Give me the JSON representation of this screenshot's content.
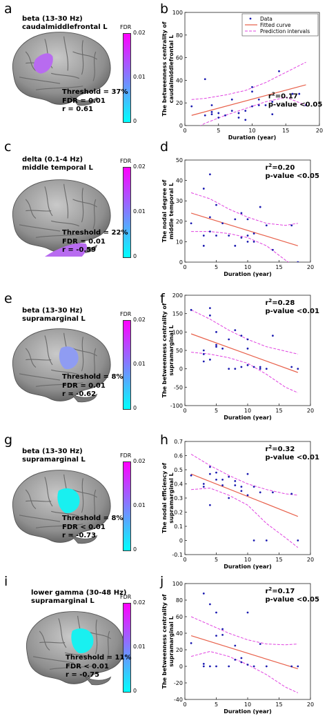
{
  "panels": [
    {
      "letter": "a",
      "band": "beta (13-30 Hz)",
      "region": "caudalmiddlefrontal L",
      "threshold": "Threshold = 37%",
      "fdr": "FDR = 0.01",
      "r": "r = 0.61",
      "cbar_title": "FDR",
      "cbar_max": "0.02",
      "cbar_mid": "0.01",
      "cbar_min": "0",
      "highlight": "#b86bf0"
    },
    {
      "letter": "c",
      "band": "delta (0.1-4 Hz)",
      "region": "middle temporal L",
      "threshold": "Threshold = 22%",
      "fdr": "FDR = 0.01",
      "r": "r = -0.59",
      "cbar_title": "FDR",
      "cbar_max": "0.02",
      "cbar_mid": "0.01",
      "cbar_min": "0",
      "highlight": "#b86bf0"
    },
    {
      "letter": "e",
      "band": "beta (13-30 Hz)",
      "region": "supramarginal L",
      "threshold": "Threshold = 8%",
      "fdr": "FDR = 0.01",
      "r": "r = -0.62",
      "cbar_title": "FDR",
      "cbar_max": "0.02",
      "cbar_mid": "0.01",
      "cbar_min": "0",
      "highlight": "#8f9cf2"
    },
    {
      "letter": "g",
      "band": "beta (13-30 Hz)",
      "region": "supramarginal L",
      "threshold": "Threshold = 8%",
      "fdr": "FDR < 0.01",
      "r": "r = -0.73",
      "cbar_title": "FDR",
      "cbar_max": "0.02",
      "cbar_mid": "0.01",
      "cbar_min": "0",
      "highlight": "#19f0f0"
    },
    {
      "letter": "i",
      "band": "lower gamma (30-48 Hz)",
      "region": "supramarginal L",
      "threshold": "Threshold = 11%",
      "fdr": "FDR < 0.01",
      "r": "r = -0.75",
      "cbar_title": "FDR",
      "cbar_max": "0.02",
      "cbar_mid": "0.01",
      "cbar_min": "0",
      "highlight": "#19f0f0"
    }
  ],
  "legend": {
    "data": "Data",
    "fitted": "Fitted curve",
    "prediction": "Prediction intervals"
  },
  "colors": {
    "fit": "#e8604a",
    "band": "#e040e0",
    "points": "#1a1ab0"
  },
  "chart_data": [
    {
      "letter": "b",
      "type": "scatter",
      "ylabel": "The betweenness centrality of caudalmiddlefrontal L",
      "xlabel": "Duration (year)",
      "xlim": [
        0,
        20
      ],
      "ylim": [
        0,
        100
      ],
      "xticks": [
        0,
        5,
        10,
        15,
        20
      ],
      "yticks": [
        0,
        20,
        40,
        60,
        80,
        100
      ],
      "r2": "=0.17",
      "pvalue": "p-value <0.05",
      "legend": true,
      "points": [
        [
          1,
          17
        ],
        [
          3,
          41
        ],
        [
          3,
          9
        ],
        [
          4,
          10
        ],
        [
          4,
          12
        ],
        [
          4,
          18
        ],
        [
          5,
          7
        ],
        [
          5,
          11
        ],
        [
          6,
          9
        ],
        [
          7,
          13
        ],
        [
          7,
          23
        ],
        [
          8,
          7
        ],
        [
          8,
          11
        ],
        [
          9,
          5
        ],
        [
          9,
          13
        ],
        [
          10,
          17
        ],
        [
          10,
          30
        ],
        [
          10,
          34
        ],
        [
          11,
          18
        ],
        [
          11,
          23
        ],
        [
          12,
          85
        ],
        [
          12,
          18
        ],
        [
          13,
          10
        ],
        [
          13,
          21
        ],
        [
          14,
          48
        ],
        [
          16,
          28
        ],
        [
          17,
          28
        ],
        [
          18,
          18
        ]
      ],
      "fit": [
        [
          1,
          9
        ],
        [
          18,
          36
        ]
      ],
      "upper": [
        [
          1,
          23
        ],
        [
          3,
          24
        ],
        [
          6,
          27
        ],
        [
          9,
          31
        ],
        [
          12,
          38
        ],
        [
          15,
          47
        ],
        [
          18,
          56
        ]
      ],
      "lower": [
        [
          1,
          -4
        ],
        [
          3,
          2
        ],
        [
          6,
          9
        ],
        [
          9,
          15
        ],
        [
          12,
          21
        ],
        [
          15,
          25
        ],
        [
          18,
          18
        ]
      ]
    },
    {
      "letter": "d",
      "type": "scatter",
      "ylabel": "The nodal degree of middle temporal L",
      "xlabel": "Duration (year)",
      "xlim": [
        0,
        20
      ],
      "ylim": [
        0,
        50
      ],
      "xticks": [
        0,
        5,
        10,
        15,
        20
      ],
      "yticks": [
        0,
        10,
        20,
        30,
        40,
        50
      ],
      "r2": "=0.20",
      "pvalue": "p-value <0.05",
      "legend": false,
      "points": [
        [
          1,
          19
        ],
        [
          3,
          36
        ],
        [
          3,
          13
        ],
        [
          3,
          8
        ],
        [
          4,
          43
        ],
        [
          4,
          15
        ],
        [
          4,
          22
        ],
        [
          5,
          28
        ],
        [
          5,
          13
        ],
        [
          6,
          19
        ],
        [
          7,
          13
        ],
        [
          8,
          8
        ],
        [
          8,
          21
        ],
        [
          9,
          24
        ],
        [
          9,
          12
        ],
        [
          10,
          21
        ],
        [
          10,
          13
        ],
        [
          10,
          10
        ],
        [
          11,
          14
        ],
        [
          11,
          10
        ],
        [
          12,
          27
        ],
        [
          13,
          18
        ],
        [
          14,
          6
        ],
        [
          17,
          18
        ],
        [
          18,
          0
        ]
      ],
      "fit": [
        [
          1,
          24
        ],
        [
          18,
          8
        ]
      ],
      "upper": [
        [
          1,
          34
        ],
        [
          4,
          31
        ],
        [
          7,
          26
        ],
        [
          10,
          22
        ],
        [
          13,
          19
        ],
        [
          16,
          18
        ],
        [
          18,
          19
        ]
      ],
      "lower": [
        [
          1,
          15
        ],
        [
          4,
          15
        ],
        [
          7,
          14
        ],
        [
          10,
          12
        ],
        [
          13,
          8
        ],
        [
          16,
          1
        ],
        [
          18,
          -3
        ]
      ]
    },
    {
      "letter": "f",
      "type": "scatter",
      "ylabel": "The betweenness centrality of supramarginal L",
      "xlabel": "Duration (year)",
      "xlim": [
        0,
        20
      ],
      "ylim": [
        -100,
        200
      ],
      "xticks": [
        0,
        5,
        10,
        15,
        20
      ],
      "yticks": [
        -100,
        -50,
        0,
        50,
        100,
        150,
        200
      ],
      "r2": "=0.28",
      "pvalue": "p-value <0.01",
      "legend": false,
      "points": [
        [
          1,
          160
        ],
        [
          3,
          50
        ],
        [
          3,
          40
        ],
        [
          3,
          20
        ],
        [
          4,
          165
        ],
        [
          4,
          145
        ],
        [
          4,
          25
        ],
        [
          5,
          100
        ],
        [
          5,
          65
        ],
        [
          5,
          60
        ],
        [
          6,
          55
        ],
        [
          7,
          80
        ],
        [
          7,
          0
        ],
        [
          8,
          105
        ],
        [
          8,
          0
        ],
        [
          9,
          5
        ],
        [
          9,
          90
        ],
        [
          10,
          80
        ],
        [
          10,
          10
        ],
        [
          10,
          55
        ],
        [
          11,
          5
        ],
        [
          12,
          5
        ],
        [
          12,
          0
        ],
        [
          13,
          0
        ],
        [
          14,
          90
        ],
        [
          17,
          5
        ],
        [
          18,
          0
        ]
      ],
      "fit": [
        [
          1,
          95
        ],
        [
          18,
          -10
        ]
      ],
      "upper": [
        [
          1,
          160
        ],
        [
          4,
          135
        ],
        [
          7,
          105
        ],
        [
          10,
          80
        ],
        [
          13,
          60
        ],
        [
          16,
          48
        ],
        [
          18,
          40
        ]
      ],
      "lower": [
        [
          1,
          45
        ],
        [
          4,
          40
        ],
        [
          7,
          30
        ],
        [
          10,
          15
        ],
        [
          13,
          -15
        ],
        [
          16,
          -50
        ],
        [
          18,
          -65
        ]
      ]
    },
    {
      "letter": "h",
      "type": "scatter",
      "ylabel": "The nodal efficiency of supramarginal L",
      "xlabel": "Duration (year)",
      "xlim": [
        0,
        20
      ],
      "ylim": [
        -0.1,
        0.7
      ],
      "xticks": [
        0,
        5,
        10,
        15,
        20
      ],
      "yticks": [
        -0.1,
        0,
        0.1,
        0.2,
        0.3,
        0.4,
        0.5,
        0.6,
        0.7
      ],
      "r2": "=0.32",
      "pvalue": "p-value <0.01",
      "legend": false,
      "points": [
        [
          1,
          0.46
        ],
        [
          3,
          0.4
        ],
        [
          3,
          0.38
        ],
        [
          4,
          0.52
        ],
        [
          4,
          0.47
        ],
        [
          4,
          0.25
        ],
        [
          5,
          0.43
        ],
        [
          5,
          0.48
        ],
        [
          6,
          0.43
        ],
        [
          6,
          0.39
        ],
        [
          7,
          0.3
        ],
        [
          7,
          0.45
        ],
        [
          8,
          0.42
        ],
        [
          8,
          0.39
        ],
        [
          9,
          0.38
        ],
        [
          9,
          0.35
        ],
        [
          10,
          0.47
        ],
        [
          10,
          0.32
        ],
        [
          11,
          0.38
        ],
        [
          11,
          0
        ],
        [
          12,
          0.34
        ],
        [
          13,
          0
        ],
        [
          14,
          0.34
        ],
        [
          17,
          0.33
        ],
        [
          18,
          0
        ]
      ],
      "fit": [
        [
          1,
          0.47
        ],
        [
          18,
          0.17
        ]
      ],
      "upper": [
        [
          1,
          0.61
        ],
        [
          4,
          0.53
        ],
        [
          7,
          0.46
        ],
        [
          10,
          0.4
        ],
        [
          13,
          0.36
        ],
        [
          16,
          0.33
        ],
        [
          18,
          0.32
        ]
      ],
      "lower": [
        [
          1,
          0.36
        ],
        [
          4,
          0.37
        ],
        [
          7,
          0.32
        ],
        [
          10,
          0.25
        ],
        [
          13,
          0.12
        ],
        [
          16,
          0.02
        ],
        [
          18,
          -0.05
        ]
      ]
    },
    {
      "letter": "j",
      "type": "scatter",
      "ylabel": "The betweenness centrality of supramarginal L",
      "xlabel": "Duration (year)",
      "xlim": [
        0,
        20
      ],
      "ylim": [
        -40,
        100
      ],
      "xticks": [
        0,
        5,
        10,
        15,
        20
      ],
      "yticks": [
        -40,
        -20,
        0,
        20,
        40,
        60,
        80,
        100
      ],
      "r2": "=0.17",
      "pvalue": "p-value <0.05",
      "legend": false,
      "points": [
        [
          1,
          28
        ],
        [
          3,
          88
        ],
        [
          3,
          3
        ],
        [
          3,
          0
        ],
        [
          4,
          75
        ],
        [
          4,
          0
        ],
        [
          5,
          65
        ],
        [
          5,
          37
        ],
        [
          5,
          0
        ],
        [
          6,
          45
        ],
        [
          6,
          38
        ],
        [
          7,
          0
        ],
        [
          8,
          25
        ],
        [
          8,
          8
        ],
        [
          9,
          10
        ],
        [
          9,
          5
        ],
        [
          10,
          65
        ],
        [
          10,
          2
        ],
        [
          11,
          0
        ],
        [
          12,
          27
        ],
        [
          13,
          0
        ],
        [
          17,
          0
        ],
        [
          18,
          0
        ]
      ],
      "fit": [
        [
          1,
          37
        ],
        [
          18,
          -3
        ]
      ],
      "upper": [
        [
          1,
          60
        ],
        [
          4,
          50
        ],
        [
          7,
          40
        ],
        [
          10,
          32
        ],
        [
          13,
          27
        ],
        [
          16,
          26
        ],
        [
          18,
          27
        ]
      ],
      "lower": [
        [
          1,
          12
        ],
        [
          4,
          18
        ],
        [
          7,
          12
        ],
        [
          10,
          2
        ],
        [
          13,
          -10
        ],
        [
          16,
          -25
        ],
        [
          18,
          -32
        ]
      ]
    }
  ]
}
